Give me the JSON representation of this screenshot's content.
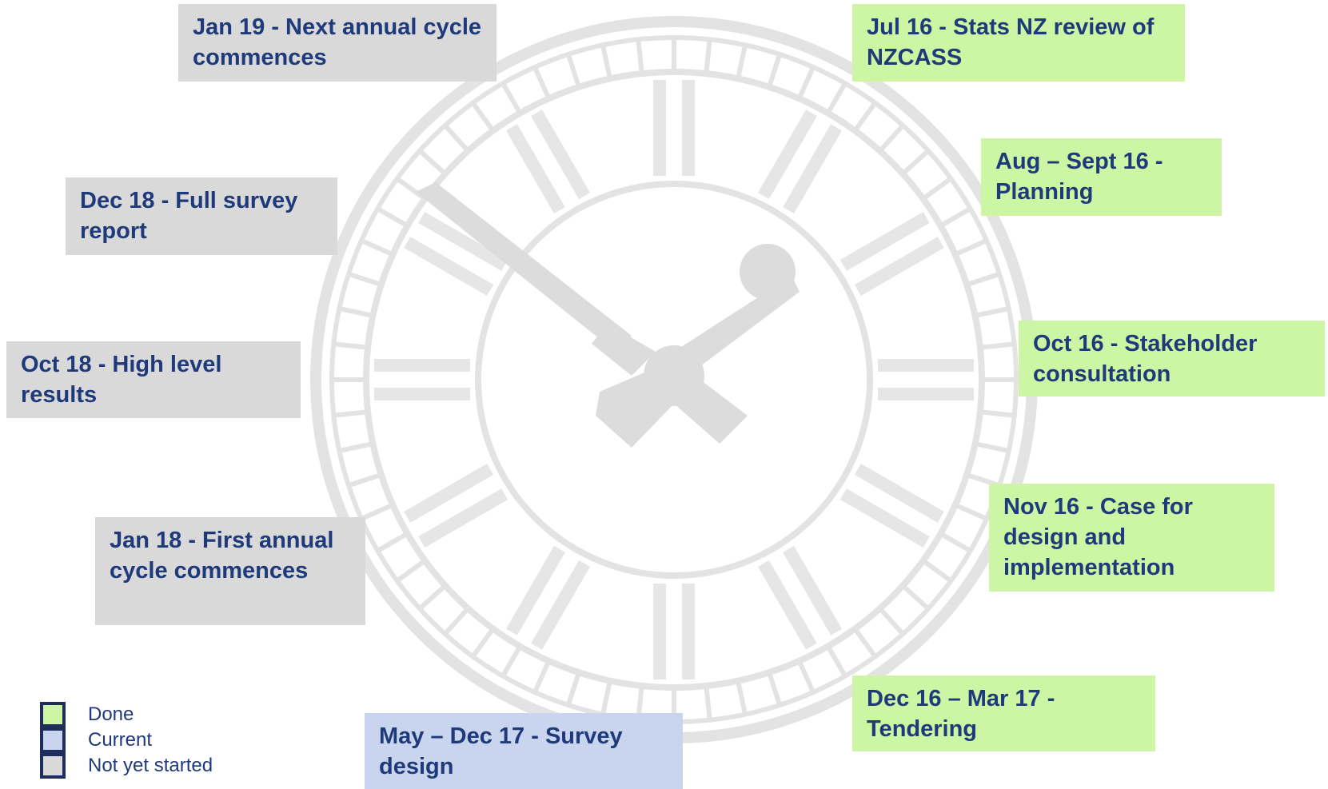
{
  "groups": [
    {
      "label": "Done",
      "color": "#ccf5a4",
      "milestones": [
        "Jul 16 - Stats NZ review of NZCASS",
        "Aug – Sept 16 - Planning",
        "Oct 16 - Stakeholder consultation",
        "Nov 16 - Case for design and implementation",
        "Dec 16 – Mar 17 - Tendering"
      ]
    },
    {
      "label": "Current",
      "color": "#c9d5ef",
      "milestones": [
        "May – Dec 17 - Survey design"
      ]
    },
    {
      "label": "Not yet started",
      "color": "#d9d9d9",
      "milestones": [
        "Jan 19 - Next annual cycle commences",
        "Dec 18 - Full survey report",
        "Oct 18 - High level results",
        "Jan 18 - First annual cycle commences"
      ]
    }
  ]
}
